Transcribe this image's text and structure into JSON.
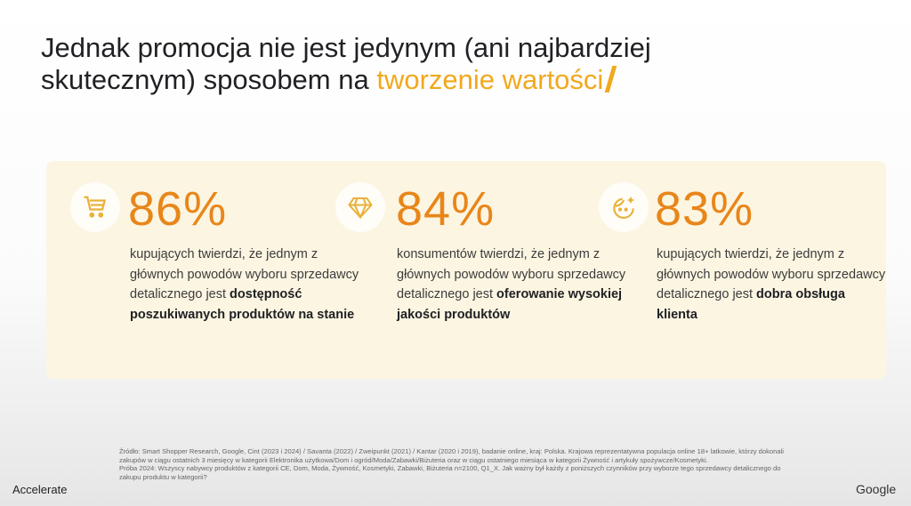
{
  "title": {
    "text": "Jednak promocja nie jest jedynym (ani najbardziej skutecznym) sposobem na ",
    "accent": "tworzenie wartości"
  },
  "colors": {
    "accent": "#f2a81d",
    "percent": "#e8861a",
    "card": "#fcf5e2"
  },
  "stats": [
    {
      "icon": "shopping-cart-icon",
      "value": "86%",
      "text": "kupujących twierdzi, że jednym z głównych powodów wyboru sprzedawcy detalicznego jest ",
      "bold": "dostępność poszukiwanych produktów na stanie"
    },
    {
      "icon": "diamond-icon",
      "value": "84%",
      "text": "konsumentów twierdzi, że jednym z głównych powodów wyboru sprzedawcy detalicznego jest ",
      "bold": "oferowanie wysokiej jakości produktów"
    },
    {
      "icon": "happy-face-sparkle-icon",
      "value": "83%",
      "text": "kupujących twierdzi, że jednym z głównych powodów wyboru sprzedawcy detalicznego jest ",
      "bold": "dobra obsługa klienta"
    }
  ],
  "footnote": {
    "source": "Źródło: Smart Shopper Research, Google, Cint (2023 i 2024) / Savanta (2022) / Zweipunkt (2021) / Kantar (2020 i 2019), badanie online, kraj: Polska. Krajowa reprezentatywna populacja online 18+ latkowie, którzy dokonali zakupów w ciągu ostatnich 3 miesięcy w kategorii Elektronika użytkowa/Dom i ogród/Moda/Zabawki/Biżuteria oraz w ciągu ostatniego miesiąca w kategorii Żywność i artykuły spożywcze/Kosmetyki.",
    "sample": "Próba 2024: Wszyscy nabywcy produktów z kategorii CE, Dom, Moda, Żywność, Kosmetyki, Zabawki, Biżuteria n=2100, Q1_X. Jak ważny był każdy z poniższych czynników przy wyborze tego sprzedawcy detalicznego do zakupu produktu w kategorii?"
  },
  "logos": {
    "left": "Accelerate",
    "right": "Google"
  }
}
